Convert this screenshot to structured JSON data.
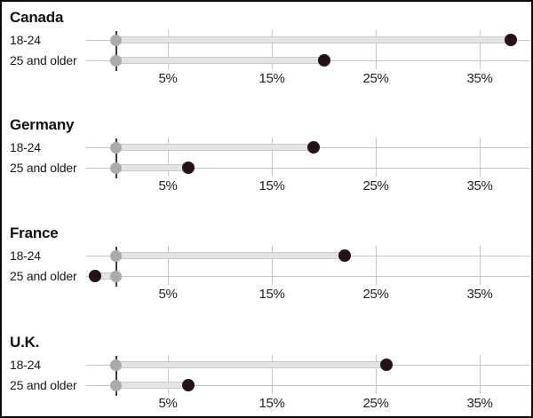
{
  "chart_data": {
    "type": "dumbbell",
    "unit": "%",
    "x_axis": {
      "ticks": [
        "5%",
        "15%",
        "25%",
        "35%"
      ],
      "tick_values": [
        5,
        15,
        25,
        35
      ],
      "range": [
        -3,
        40
      ],
      "grid": true
    },
    "baseline_value": 0,
    "panels": [
      {
        "title": "Canada",
        "rows": [
          {
            "label": "18-24",
            "baseline": 0,
            "value": 38
          },
          {
            "label": "25 and older",
            "baseline": 0,
            "value": 20
          }
        ]
      },
      {
        "title": "Germany",
        "rows": [
          {
            "label": "18-24",
            "baseline": 0,
            "value": 19
          },
          {
            "label": "25 and older",
            "baseline": 0,
            "value": 7
          }
        ]
      },
      {
        "title": "France",
        "rows": [
          {
            "label": "18-24",
            "baseline": 0,
            "value": 22
          },
          {
            "label": "25 and older",
            "baseline": 0,
            "value": -2
          }
        ]
      },
      {
        "title": "U.K.",
        "rows": [
          {
            "label": "18-24",
            "baseline": 0,
            "value": 26
          },
          {
            "label": "25 and older",
            "baseline": 0,
            "value": 7
          }
        ]
      }
    ],
    "colors": {
      "value_dot": "#231318",
      "baseline_dot": "#ababab",
      "bar_fill": "#e4e4e4",
      "bar_edge": "#c9c9c9",
      "gridline": "#c9c9c9",
      "row_line": "#c6c6c6",
      "zero_line": "#3c3c3c",
      "text": "#1a1a1a",
      "border": "#0a0a0a"
    }
  }
}
